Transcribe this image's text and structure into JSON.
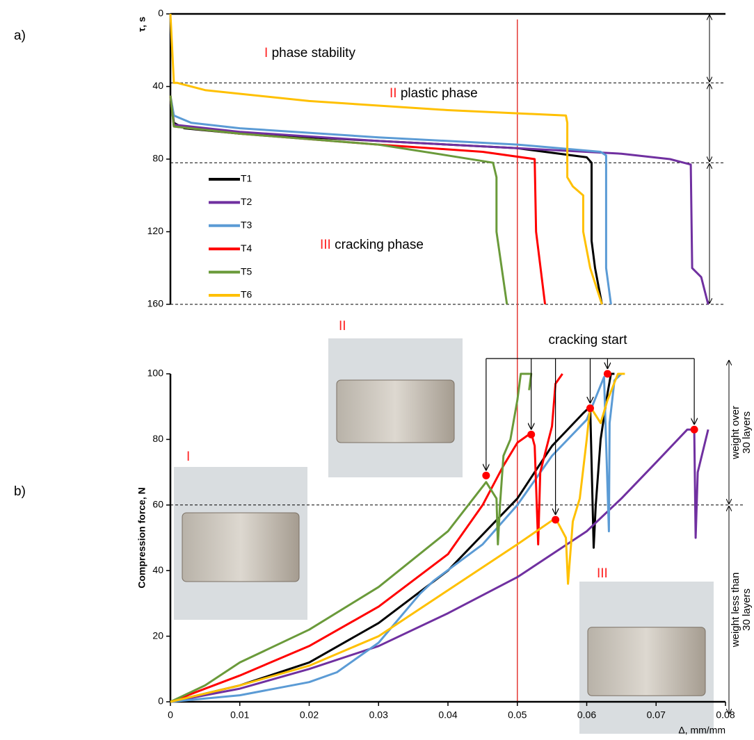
{
  "panel_labels": [
    "a)",
    "b)"
  ],
  "chart_data": [
    {
      "type": "line",
      "y_label": "τ, s",
      "xlim": [
        0,
        0.08
      ],
      "ylim": [
        0,
        160
      ],
      "y_inverted": true,
      "yticks": [
        0,
        40,
        80,
        120,
        160
      ],
      "phase_boundaries": [
        38,
        82,
        160
      ],
      "reference_line_x": 0.05,
      "reference_color": "#e53935",
      "phases": [
        {
          "numeral": "I",
          "label": "phase stability"
        },
        {
          "numeral": "II",
          "label": "plastic phase"
        },
        {
          "numeral": "III",
          "label": "cracking phase"
        }
      ],
      "numeral_color": "#ff2020",
      "series": [
        {
          "name": "T1",
          "color": "#000000",
          "x": [
            0,
            0.0005,
            0.002,
            0.01,
            0.03,
            0.05,
            0.06,
            0.0607,
            0.0607,
            0.0612,
            0.0622
          ],
          "values": [
            45,
            60,
            63,
            66,
            70,
            74,
            79,
            82,
            125,
            140,
            160
          ]
        },
        {
          "name": "T2",
          "color": "#7030a0",
          "x": [
            0,
            0.0005,
            0.01,
            0.03,
            0.05,
            0.065,
            0.072,
            0.075,
            0.0752,
            0.0765,
            0.0775
          ],
          "values": [
            45,
            61,
            65,
            70,
            74,
            77,
            80,
            83,
            140,
            145,
            160
          ]
        },
        {
          "name": "T3",
          "color": "#5b9bd5",
          "x": [
            0,
            0.0005,
            0.003,
            0.01,
            0.03,
            0.05,
            0.062,
            0.0628,
            0.0628,
            0.0635
          ],
          "values": [
            45,
            56,
            60,
            63,
            68,
            72,
            76,
            78,
            140,
            160
          ]
        },
        {
          "name": "T4",
          "color": "#ff0000",
          "x": [
            0,
            0.0005,
            0.01,
            0.03,
            0.045,
            0.0525,
            0.0527,
            0.054
          ],
          "values": [
            45,
            62,
            66,
            72,
            76,
            80,
            120,
            160
          ]
        },
        {
          "name": "T5",
          "color": "#6a9a3a",
          "x": [
            0,
            0.0005,
            0.01,
            0.03,
            0.04,
            0.0465,
            0.047,
            0.047,
            0.0485
          ],
          "values": [
            45,
            62,
            66,
            72,
            78,
            82,
            90,
            120,
            160
          ]
        },
        {
          "name": "T6",
          "color": "#ffc000",
          "x": [
            0,
            0.0005,
            0.001,
            0.005,
            0.02,
            0.04,
            0.057,
            0.0572,
            0.0572,
            0.058,
            0.0595,
            0.0595,
            0.0605,
            0.0622
          ],
          "values": [
            0,
            38,
            38,
            42,
            48,
            53,
            56,
            60,
            90,
            95,
            100,
            120,
            140,
            160
          ]
        }
      ]
    },
    {
      "type": "line",
      "y_label": "Compression force, N",
      "x_label": "Δ, mm/mm",
      "xlim": [
        0,
        0.08
      ],
      "ylim": [
        0,
        100
      ],
      "xticks": [
        0,
        0.01,
        0.02,
        0.03,
        0.04,
        0.05,
        0.06,
        0.07,
        0.08
      ],
      "yticks": [
        0,
        20,
        40,
        60,
        80,
        100
      ],
      "threshold": 60,
      "annotation": "cracking start",
      "cracking_points": {
        "color": "#ff0000",
        "x": [
          0.0455,
          0.052,
          0.0555,
          0.0605,
          0.063,
          0.0755
        ],
        "values": [
          69,
          81.5,
          55.5,
          89.5,
          100,
          83
        ]
      },
      "zone_labels": [
        [
          "weight over",
          "30 layers"
        ],
        [
          "weight less than",
          "30 layers"
        ]
      ],
      "photo_labels": [
        "I",
        "II",
        "III"
      ],
      "series": [
        {
          "color": "#000000",
          "x": [
            0,
            0.01,
            0.02,
            0.03,
            0.04,
            0.05,
            0.055,
            0.0595,
            0.0605,
            0.061,
            0.0613,
            0.062,
            0.063,
            0.0635,
            0.064
          ],
          "values": [
            0,
            5,
            12,
            24,
            40,
            62,
            78,
            88,
            90,
            47,
            60,
            80,
            94,
            100,
            100
          ]
        },
        {
          "color": "#7030a0",
          "x": [
            0,
            0.01,
            0.02,
            0.03,
            0.04,
            0.05,
            0.06,
            0.065,
            0.07,
            0.0745,
            0.0755,
            0.0757,
            0.076,
            0.0775
          ],
          "values": [
            0,
            4,
            10,
            17,
            27,
            38,
            52,
            62,
            73,
            83,
            83,
            50,
            70,
            83
          ]
        },
        {
          "color": "#5b9bd5",
          "x": [
            0,
            0.01,
            0.02,
            0.024,
            0.03,
            0.036,
            0.038,
            0.045,
            0.05,
            0.055,
            0.06,
            0.0625,
            0.0632,
            0.0633,
            0.064,
            0.065
          ],
          "values": [
            0,
            2,
            6,
            9,
            18,
            33,
            37,
            48,
            60,
            75,
            86,
            99,
            52,
            85,
            98,
            100
          ]
        },
        {
          "color": "#ff0000",
          "x": [
            0,
            0.01,
            0.02,
            0.03,
            0.04,
            0.045,
            0.048,
            0.05,
            0.052,
            0.0525,
            0.053,
            0.0533,
            0.055,
            0.0555,
            0.0565
          ],
          "values": [
            0,
            8,
            17,
            29,
            45,
            60,
            72,
            79,
            82,
            78,
            48,
            70,
            84,
            97,
            100
          ]
        },
        {
          "color": "#6a9a3a",
          "x": [
            0,
            0.005,
            0.01,
            0.02,
            0.03,
            0.04,
            0.0455,
            0.047,
            0.0472,
            0.0475,
            0.048,
            0.049,
            0.05,
            0.0505,
            0.052,
            0.0517
          ],
          "values": [
            0,
            5,
            12,
            22,
            35,
            52,
            67,
            62,
            48,
            60,
            75,
            80,
            92,
            100,
            100,
            95
          ]
        },
        {
          "color": "#ffc000",
          "x": [
            0,
            0.01,
            0.02,
            0.03,
            0.04,
            0.05,
            0.0555,
            0.057,
            0.0573,
            0.058,
            0.059,
            0.06,
            0.0605,
            0.062,
            0.063,
            0.0645,
            0.0655
          ],
          "values": [
            0,
            5,
            11,
            20,
            34,
            48,
            56,
            50,
            36,
            55,
            62,
            80,
            90,
            85,
            92,
            100,
            100
          ]
        }
      ]
    }
  ]
}
